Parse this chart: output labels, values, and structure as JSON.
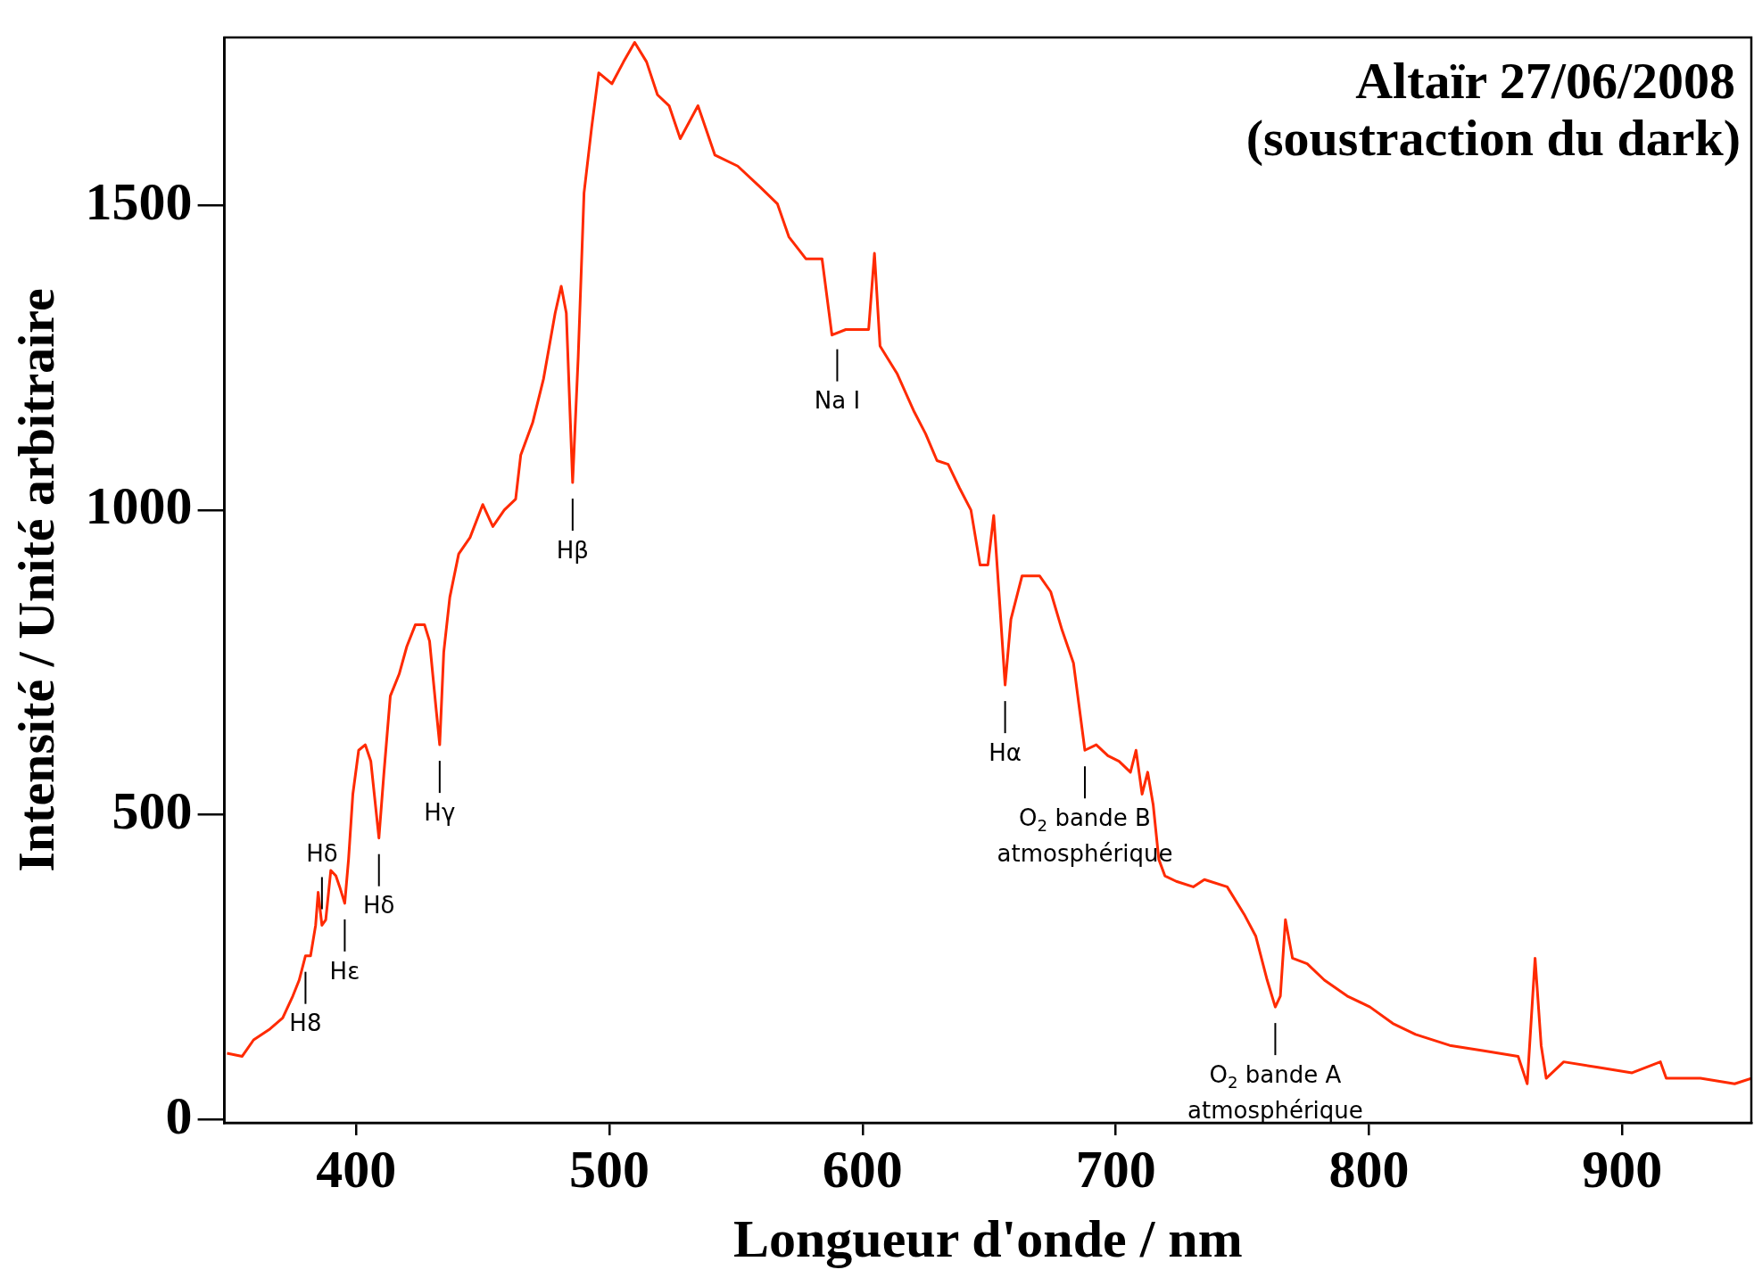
{
  "chart_data": {
    "type": "line",
    "title": "Altaïr 27/06/2008",
    "subtitle": "(soustraction du dark)",
    "xlabel": "Longueur d'onde / nm",
    "ylabel": "Intensité / Unité arbitraire",
    "x": [
      349,
      355,
      359.5,
      366,
      371,
      375,
      377.5,
      380,
      382,
      384,
      385,
      386.5,
      388,
      390,
      392,
      393.5,
      395.5,
      397,
      398.7,
      401,
      403.6,
      405.8,
      409,
      411,
      413.5,
      417,
      420,
      423.4,
      427,
      429,
      431.5,
      433,
      434.6,
      437,
      440.5,
      445,
      450,
      454,
      458.5,
      463,
      465,
      469.7,
      474,
      478.6,
      481,
      483,
      485.5,
      487.7,
      490,
      493,
      495.8,
      501,
      505.6,
      510,
      514.7,
      519,
      523.6,
      528,
      535,
      541.7,
      550.7,
      559.7,
      566.4,
      570.9,
      577.6,
      584,
      587.9,
      593.4,
      602.4,
      604.7,
      606.9,
      613.6,
      620.4,
      624.9,
      629.4,
      633.8,
      638.3,
      642.8,
      646.4,
      649.5,
      651.8,
      654,
      656.3,
      658.6,
      663,
      669.9,
      674.3,
      678.8,
      683.3,
      687.8,
      692.3,
      696.9,
      701.3,
      705.8,
      708,
      710.4,
      712.6,
      714.8,
      717,
      719.4,
      723.9,
      730.6,
      735,
      744,
      750.7,
      755.3,
      759.8,
      763,
      765,
      767,
      769.8,
      775.6,
      782.4,
      791.4,
      800.4,
      809.4,
      818.4,
      831.9,
      845.4,
      858.9,
      862.5,
      865.6,
      868,
      870,
      876.9,
      890.4,
      903.9,
      915.1,
      917.4,
      930.9,
      944.4,
      951
    ],
    "series": [
      {
        "color": "#ff2a00",
        "values": [
          109,
          104,
          131,
          149,
          167,
          203,
          229,
          269,
          269,
          319,
          373,
          319,
          328,
          409,
          400,
          382,
          355,
          427,
          534,
          606,
          615,
          588,
          462,
          570,
          695,
          731,
          776,
          812,
          812,
          785,
          677,
          615,
          767,
          857,
          928,
          955,
          1009,
          973,
          1000,
          1018,
          1090,
          1143,
          1215,
          1323,
          1367,
          1323,
          1045,
          1251,
          1520,
          1627,
          1717,
          1699,
          1735,
          1767,
          1735,
          1681,
          1663,
          1609,
          1663,
          1582,
          1564,
          1529,
          1502,
          1448,
          1412,
          1412,
          1287,
          1296,
          1296,
          1421,
          1269,
          1224,
          1161,
          1125,
          1081,
          1075,
          1036,
          1000,
          910,
          910,
          991,
          857,
          713,
          821,
          892,
          892,
          866,
          803,
          749,
          606,
          615,
          597,
          588,
          570,
          606,
          534,
          570,
          516,
          427,
          400,
          391,
          382,
          394,
          382,
          337,
          301,
          229,
          185,
          203,
          328,
          265,
          256,
          229,
          203,
          185,
          158,
          140,
          122,
          113,
          104,
          59,
          265,
          122,
          68,
          95,
          86,
          77,
          95,
          68,
          68,
          59,
          68
        ]
      }
    ],
    "xlim": [
      348,
      951
    ],
    "ylim": [
      -5,
      1775
    ],
    "xticks": [
      400,
      500,
      600,
      700,
      800,
      900
    ],
    "yticks": [
      0,
      500,
      1000,
      1500
    ],
    "grid": false,
    "annotations": [
      {
        "text": "H8",
        "x": 380,
        "y": 269
      },
      {
        "text": "Hδ",
        "x": 386.5,
        "y": 319
      },
      {
        "text": "Hε",
        "x": 395.5,
        "y": 355
      },
      {
        "text": "Hδ",
        "x": 409,
        "y": 462
      },
      {
        "text": "Hγ",
        "x": 433,
        "y": 615
      },
      {
        "text": "Hβ",
        "x": 485.5,
        "y": 1045
      },
      {
        "text": "Na I",
        "x": 590,
        "y": 1290
      },
      {
        "text": "Hα",
        "x": 656.3,
        "y": 713
      },
      {
        "text": "O$_{2}$ bande B\natmosphérique",
        "x": 687.8,
        "y": 606
      },
      {
        "text": "O$_{2}$ bande A\natmosphérique",
        "x": 763,
        "y": 185
      }
    ]
  }
}
